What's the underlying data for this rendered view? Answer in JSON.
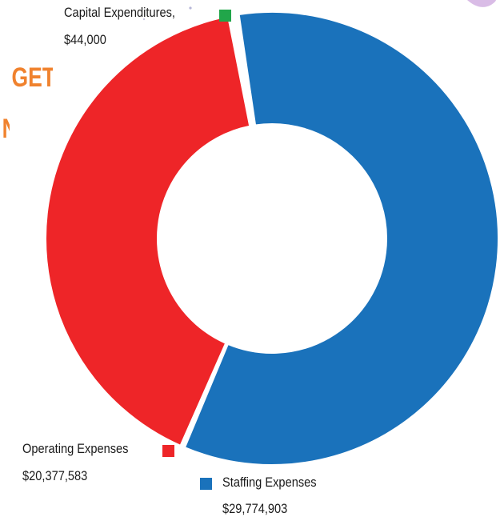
{
  "heading_fragments": {
    "line1": "GET",
    "line2": "N",
    "color": "#F0822E"
  },
  "chart_data": {
    "type": "pie",
    "variant": "donut",
    "title": "",
    "slices": [
      {
        "label": "Staffing Expenses",
        "value_text": "$29,774,903",
        "value": 29774903,
        "color": "#1A72BB"
      },
      {
        "label": "Operating Expenses",
        "value_text": "$20,377,583",
        "value": 20377583,
        "color": "#EE2528"
      },
      {
        "label": "Capital Expenditures,",
        "value_text": "$44,000",
        "value": 44000,
        "color": "#21A64A"
      }
    ],
    "legend": "inline labels next to slices",
    "grid": false
  }
}
